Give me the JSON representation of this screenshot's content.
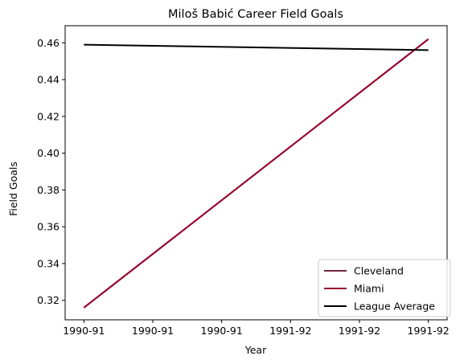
{
  "chart_data": {
    "type": "line",
    "title": "Miloš Babić Career Field Goals",
    "xlabel": "Year",
    "ylabel": "Field Goals",
    "x_tick_labels": [
      "1990-91",
      "1990-91",
      "1990-91",
      "1991-92",
      "1991-92",
      "1991-92"
    ],
    "x": [
      0,
      1
    ],
    "xlim": [
      -0.0545,
      1.0545
    ],
    "ylim": [
      0.3094,
      0.4693
    ],
    "y_ticks": [
      0.32,
      0.34,
      0.36,
      0.38,
      0.4,
      0.42,
      0.44,
      0.46
    ],
    "y_tick_labels": [
      "0.32",
      "0.34",
      "0.36",
      "0.38",
      "0.40",
      "0.42",
      "0.44",
      "0.46"
    ],
    "grid": false,
    "legend_position": "bottom-right",
    "series": [
      {
        "name": "Cleveland",
        "color": "#6F263D",
        "x": [
          0,
          1
        ],
        "values": [
          0.316,
          0.462
        ]
      },
      {
        "name": "Miami",
        "color": "#98002E",
        "x": [
          0,
          1
        ],
        "values": [
          0.316,
          0.462
        ]
      },
      {
        "name": "League Average",
        "color": "#000000",
        "x": [
          0,
          1
        ],
        "values": [
          0.459,
          0.456
        ]
      }
    ]
  }
}
